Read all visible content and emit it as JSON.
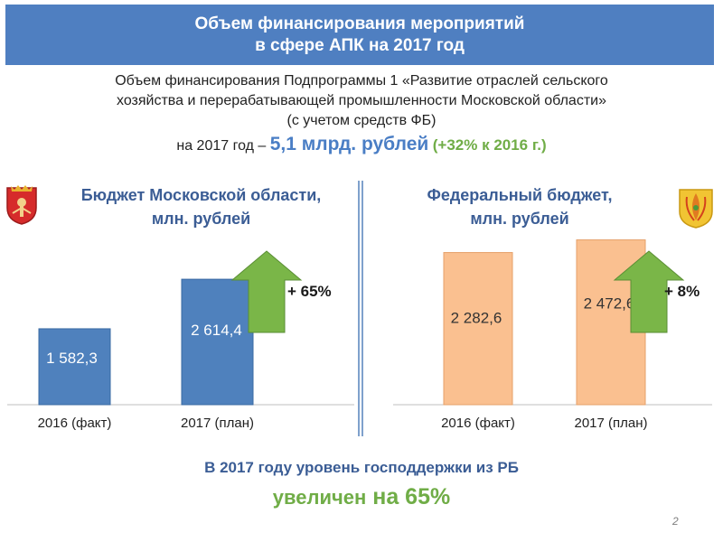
{
  "header": {
    "line1": "Объем финансирования мероприятий",
    "line2": "в сфере АПК на 2017 год"
  },
  "intro": {
    "line1": "Объем финансирования Подпрограммы 1 «Развитие отраслей сельского",
    "line2": "хозяйства и перерабатывающей промышленности Московской области»",
    "line3": "(с учетом средств ФБ)",
    "line4_prefix": "на 2017 год –",
    "line4_amount": "5,1 млрд. рублей",
    "line4_growth": "(+32% к 2016 г.)"
  },
  "colors": {
    "header_bg": "#4f7fc1",
    "bar_regional": "#4f81bd",
    "bar_federal": "#fac090",
    "arrow_green": "#7ab648",
    "accent_blue": "#3b5d95",
    "accent_green": "#70ad47"
  },
  "icons": {
    "left_emblem": "moscow-oblast-coat-of-arms-icon",
    "right_emblem": "agriculture-ministry-emblem-icon"
  },
  "chart_data": [
    {
      "type": "bar",
      "title": "Бюджет Московской области, млн. рублей",
      "title_lines": [
        "Бюджет Московской области,",
        "млн. рублей"
      ],
      "categories": [
        "2016 (факт)",
        "2017 (план)"
      ],
      "values": [
        1582.3,
        2614.4
      ],
      "value_labels": [
        "1 582,3",
        "2 614,4"
      ],
      "growth_label": "+ 65%",
      "ylim": [
        0,
        3200
      ],
      "grid": false
    },
    {
      "type": "bar",
      "title": "Федеральный бюджет, млн. рублей",
      "title_lines": [
        "Федеральный бюджет,",
        "млн. рублей"
      ],
      "categories": [
        "2016 (факт)",
        "2017 (план)"
      ],
      "values": [
        2282.6,
        2472.6
      ],
      "value_labels": [
        "2 282,6",
        "2 472,6"
      ],
      "growth_label": "+ 8%",
      "ylim": [
        0,
        2900
      ],
      "grid": false
    }
  ],
  "bottom": {
    "line1": "В 2017 году уровень господдержки из РБ",
    "line2_prefix": "увеличен",
    "line2_value": "на 65%"
  },
  "page_number": "2"
}
